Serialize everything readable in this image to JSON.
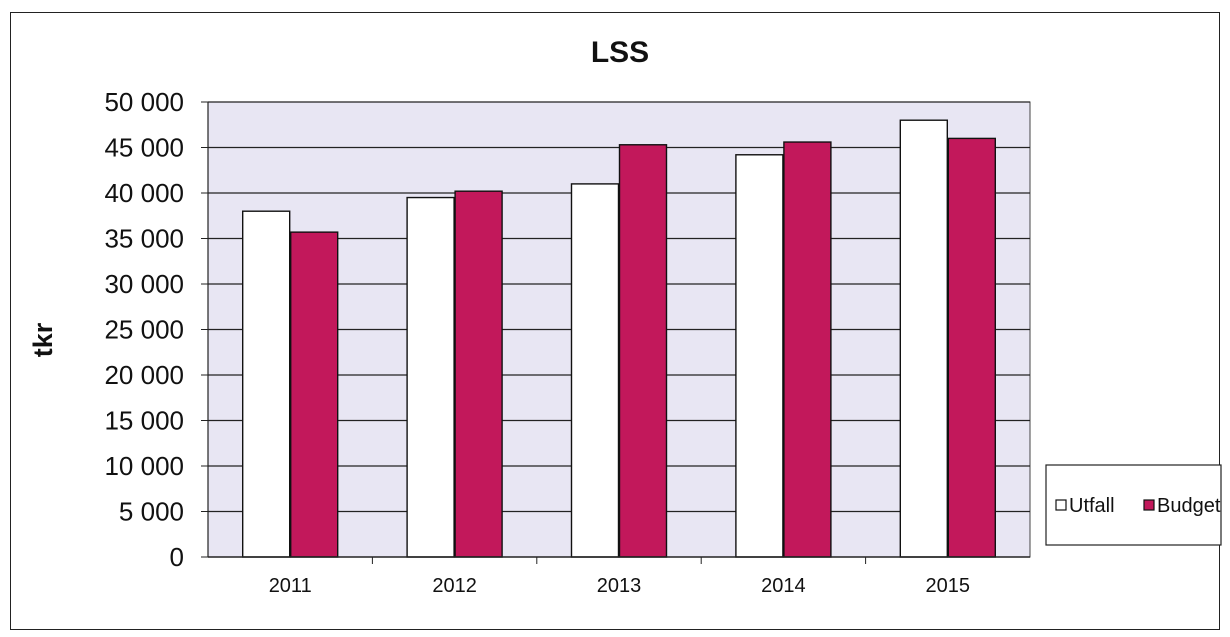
{
  "chart_data": {
    "type": "bar",
    "title": "LSS",
    "xlabel": "",
    "ylabel": "tkr",
    "categories": [
      "2011",
      "2012",
      "2013",
      "2014",
      "2015"
    ],
    "series": [
      {
        "name": "Utfall",
        "values": [
          38000,
          39500,
          41000,
          44200,
          48000
        ],
        "color": "#ffffff"
      },
      {
        "name": "Budget",
        "values": [
          35700,
          40200,
          45300,
          45600,
          46000
        ],
        "color": "#c2185b"
      }
    ],
    "ylim": [
      0,
      50000
    ],
    "yticks": [
      0,
      5000,
      10000,
      15000,
      20000,
      25000,
      30000,
      35000,
      40000,
      45000,
      50000
    ],
    "ytick_labels": [
      "0",
      "5 000",
      "10 000",
      "15 000",
      "20 000",
      "25 000",
      "30 000",
      "35 000",
      "40 000",
      "45 000",
      "50 000"
    ],
    "grid": true,
    "legend_position": "right",
    "plot_background": "#e8e6f3"
  }
}
